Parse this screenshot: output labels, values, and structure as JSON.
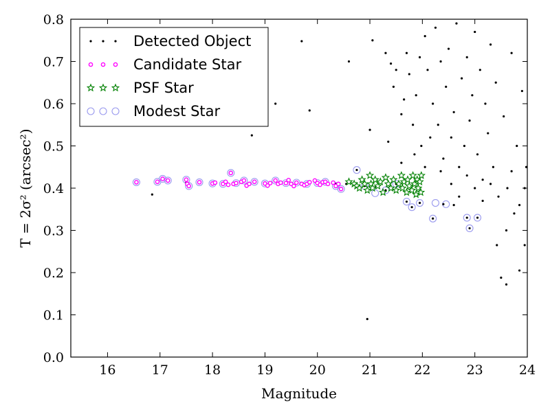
{
  "chart_data": {
    "type": "scatter",
    "title": "",
    "xlabel": "Magnitude",
    "ylabel": "T = 2σ² (arcsec²)",
    "xlim": [
      15.3,
      24.0
    ],
    "ylim": [
      0.0,
      0.8
    ],
    "xticks": [
      "16",
      "17",
      "18",
      "19",
      "20",
      "21",
      "22",
      "23",
      "24"
    ],
    "yticks": [
      "0.0",
      "0.1",
      "0.2",
      "0.3",
      "0.4",
      "0.5",
      "0.6",
      "0.7",
      "0.8"
    ],
    "grid": false,
    "legend_position": "top-left",
    "colors": {
      "detected": "#000000",
      "candidate": "#ff00ff",
      "psf": "#008000",
      "modest": "#9999ee"
    },
    "series": [
      {
        "name": "Detected Object",
        "marker": "dot",
        "points": [
          [
            16.55,
            0.414
          ],
          [
            16.95,
            0.415
          ],
          [
            17.05,
            0.422
          ],
          [
            17.15,
            0.418
          ],
          [
            17.5,
            0.413
          ],
          [
            17.75,
            0.414
          ],
          [
            18.0,
            0.411
          ],
          [
            18.2,
            0.41
          ],
          [
            18.35,
            0.435
          ],
          [
            18.45,
            0.412
          ],
          [
            18.6,
            0.417
          ],
          [
            18.8,
            0.415
          ],
          [
            19.0,
            0.411
          ],
          [
            19.2,
            0.418
          ],
          [
            19.4,
            0.412
          ],
          [
            19.6,
            0.413
          ],
          [
            19.8,
            0.41
          ],
          [
            20.0,
            0.412
          ],
          [
            20.15,
            0.415
          ],
          [
            20.35,
            0.41
          ],
          [
            20.55,
            0.41
          ],
          [
            20.75,
            0.443
          ],
          [
            20.9,
            0.405
          ],
          [
            21.1,
            0.402
          ],
          [
            21.3,
            0.395
          ],
          [
            21.5,
            0.41
          ],
          [
            21.7,
            0.368
          ],
          [
            21.8,
            0.355
          ],
          [
            21.95,
            0.365
          ],
          [
            22.2,
            0.328
          ],
          [
            22.4,
            0.362
          ],
          [
            22.85,
            0.33
          ],
          [
            22.9,
            0.305
          ],
          [
            23.05,
            0.33
          ],
          [
            16.85,
            0.385
          ],
          [
            18.75,
            0.525
          ],
          [
            19.2,
            0.6
          ],
          [
            19.7,
            0.748
          ],
          [
            19.85,
            0.584
          ],
          [
            20.6,
            0.7
          ],
          [
            20.95,
            0.09
          ],
          [
            21.0,
            0.538
          ],
          [
            21.05,
            0.75
          ],
          [
            21.3,
            0.72
          ],
          [
            21.35,
            0.51
          ],
          [
            21.4,
            0.695
          ],
          [
            21.5,
            0.68
          ],
          [
            21.45,
            0.64
          ],
          [
            21.6,
            0.575
          ],
          [
            21.65,
            0.61
          ],
          [
            21.7,
            0.72
          ],
          [
            21.75,
            0.67
          ],
          [
            21.82,
            0.55
          ],
          [
            21.88,
            0.62
          ],
          [
            21.95,
            0.71
          ],
          [
            21.98,
            0.5
          ],
          [
            22.05,
            0.76
          ],
          [
            22.1,
            0.68
          ],
          [
            22.15,
            0.52
          ],
          [
            22.2,
            0.6
          ],
          [
            22.25,
            0.78
          ],
          [
            22.3,
            0.55
          ],
          [
            22.35,
            0.7
          ],
          [
            22.4,
            0.47
          ],
          [
            22.45,
            0.64
          ],
          [
            22.5,
            0.73
          ],
          [
            22.55,
            0.52
          ],
          [
            22.6,
            0.58
          ],
          [
            22.65,
            0.79
          ],
          [
            22.7,
            0.45
          ],
          [
            22.75,
            0.66
          ],
          [
            22.8,
            0.5
          ],
          [
            22.85,
            0.71
          ],
          [
            22.9,
            0.56
          ],
          [
            22.95,
            0.62
          ],
          [
            23.0,
            0.77
          ],
          [
            23.05,
            0.48
          ],
          [
            23.1,
            0.68
          ],
          [
            23.15,
            0.42
          ],
          [
            23.2,
            0.6
          ],
          [
            23.25,
            0.53
          ],
          [
            23.3,
            0.74
          ],
          [
            23.35,
            0.45
          ],
          [
            23.4,
            0.65
          ],
          [
            23.42,
            0.265
          ],
          [
            23.5,
            0.188
          ],
          [
            23.55,
            0.57
          ],
          [
            23.6,
            0.172
          ],
          [
            23.62,
            0.4
          ],
          [
            23.7,
            0.72
          ],
          [
            23.75,
            0.34
          ],
          [
            23.8,
            0.5
          ],
          [
            23.85,
            0.205
          ],
          [
            23.9,
            0.63
          ],
          [
            23.95,
            0.265
          ],
          [
            23.98,
            0.45
          ],
          [
            22.55,
            0.41
          ],
          [
            22.7,
            0.38
          ],
          [
            22.85,
            0.43
          ],
          [
            23.0,
            0.4
          ],
          [
            23.15,
            0.37
          ],
          [
            23.3,
            0.41
          ],
          [
            23.45,
            0.38
          ],
          [
            23.6,
            0.3
          ],
          [
            23.7,
            0.44
          ],
          [
            23.85,
            0.36
          ],
          [
            23.95,
            0.4
          ],
          [
            22.0,
            0.43
          ],
          [
            22.35,
            0.44
          ],
          [
            22.6,
            0.36
          ],
          [
            21.6,
            0.46
          ],
          [
            21.85,
            0.48
          ],
          [
            22.05,
            0.45
          ]
        ]
      },
      {
        "name": "Candidate Star",
        "marker": "circle",
        "points": [
          [
            16.55,
            0.414
          ],
          [
            16.95,
            0.415
          ],
          [
            17.05,
            0.422
          ],
          [
            17.15,
            0.418
          ],
          [
            17.5,
            0.42
          ],
          [
            17.52,
            0.41
          ],
          [
            17.55,
            0.405
          ],
          [
            17.75,
            0.414
          ],
          [
            18.0,
            0.411
          ],
          [
            18.05,
            0.413
          ],
          [
            18.2,
            0.41
          ],
          [
            18.25,
            0.415
          ],
          [
            18.3,
            0.408
          ],
          [
            18.35,
            0.436
          ],
          [
            18.4,
            0.41
          ],
          [
            18.45,
            0.412
          ],
          [
            18.55,
            0.415
          ],
          [
            18.6,
            0.418
          ],
          [
            18.65,
            0.406
          ],
          [
            18.7,
            0.41
          ],
          [
            18.8,
            0.415
          ],
          [
            19.0,
            0.411
          ],
          [
            19.05,
            0.406
          ],
          [
            19.1,
            0.412
          ],
          [
            19.2,
            0.418
          ],
          [
            19.25,
            0.41
          ],
          [
            19.3,
            0.413
          ],
          [
            19.4,
            0.412
          ],
          [
            19.45,
            0.419
          ],
          [
            19.5,
            0.41
          ],
          [
            19.55,
            0.405
          ],
          [
            19.6,
            0.413
          ],
          [
            19.7,
            0.41
          ],
          [
            19.75,
            0.407
          ],
          [
            19.8,
            0.41
          ],
          [
            19.85,
            0.414
          ],
          [
            19.95,
            0.418
          ],
          [
            20.0,
            0.412
          ],
          [
            20.05,
            0.408
          ],
          [
            20.1,
            0.414
          ],
          [
            20.15,
            0.415
          ],
          [
            20.2,
            0.41
          ],
          [
            20.3,
            0.413
          ],
          [
            20.35,
            0.405
          ],
          [
            20.4,
            0.41
          ],
          [
            20.45,
            0.398
          ]
        ]
      },
      {
        "name": "PSF Star",
        "marker": "star",
        "points": [
          [
            20.6,
            0.415
          ],
          [
            20.7,
            0.41
          ],
          [
            20.75,
            0.405
          ],
          [
            20.8,
            0.4
          ],
          [
            20.85,
            0.42
          ],
          [
            20.9,
            0.41
          ],
          [
            20.95,
            0.395
          ],
          [
            21.0,
            0.43
          ],
          [
            21.02,
            0.41
          ],
          [
            21.05,
            0.4
          ],
          [
            21.1,
            0.42
          ],
          [
            21.15,
            0.405
          ],
          [
            21.2,
            0.415
          ],
          [
            21.25,
            0.39
          ],
          [
            21.3,
            0.425
          ],
          [
            21.35,
            0.41
          ],
          [
            21.4,
            0.4
          ],
          [
            21.45,
            0.42
          ],
          [
            21.5,
            0.395
          ],
          [
            21.55,
            0.41
          ],
          [
            21.6,
            0.43
          ],
          [
            21.62,
            0.4
          ],
          [
            21.65,
            0.415
          ],
          [
            21.7,
            0.39
          ],
          [
            21.72,
            0.42
          ],
          [
            21.75,
            0.405
          ],
          [
            21.8,
            0.395
          ],
          [
            21.82,
            0.43
          ],
          [
            21.85,
            0.41
          ],
          [
            21.88,
            0.385
          ],
          [
            21.9,
            0.42
          ],
          [
            21.92,
            0.4
          ],
          [
            21.95,
            0.415
          ],
          [
            21.97,
            0.39
          ],
          [
            21.98,
            0.43
          ]
        ]
      },
      {
        "name": "Modest Star",
        "marker": "open-circle",
        "points": [
          [
            16.55,
            0.414
          ],
          [
            16.95,
            0.415
          ],
          [
            17.05,
            0.422
          ],
          [
            17.15,
            0.418
          ],
          [
            17.5,
            0.42
          ],
          [
            17.55,
            0.405
          ],
          [
            17.75,
            0.414
          ],
          [
            18.0,
            0.411
          ],
          [
            18.2,
            0.41
          ],
          [
            18.35,
            0.436
          ],
          [
            18.45,
            0.412
          ],
          [
            18.6,
            0.418
          ],
          [
            18.8,
            0.415
          ],
          [
            19.0,
            0.411
          ],
          [
            19.2,
            0.418
          ],
          [
            19.4,
            0.412
          ],
          [
            19.6,
            0.413
          ],
          [
            19.8,
            0.41
          ],
          [
            20.0,
            0.412
          ],
          [
            20.15,
            0.415
          ],
          [
            20.35,
            0.405
          ],
          [
            20.45,
            0.398
          ],
          [
            20.75,
            0.443
          ],
          [
            20.9,
            0.405
          ],
          [
            21.1,
            0.388
          ],
          [
            21.3,
            0.395
          ],
          [
            21.5,
            0.41
          ],
          [
            21.7,
            0.368
          ],
          [
            21.8,
            0.355
          ],
          [
            21.95,
            0.365
          ],
          [
            22.2,
            0.328
          ],
          [
            22.25,
            0.365
          ],
          [
            22.45,
            0.362
          ],
          [
            22.85,
            0.33
          ],
          [
            22.9,
            0.305
          ],
          [
            23.05,
            0.33
          ]
        ]
      }
    ]
  }
}
